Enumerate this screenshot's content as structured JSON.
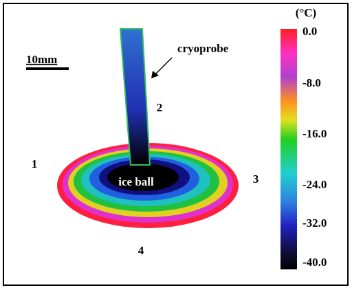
{
  "colorbar": {
    "unit": "(°C)",
    "ticks": [
      "0.0",
      "-8.0",
      "-16.0",
      "-24.0",
      "-32.0",
      "-40.0"
    ]
  },
  "scale_label": "10mm",
  "probe_label": "cryoprobe",
  "ice_ball_label": "ice ball",
  "points": [
    "1",
    "2",
    "3",
    "4"
  ]
}
